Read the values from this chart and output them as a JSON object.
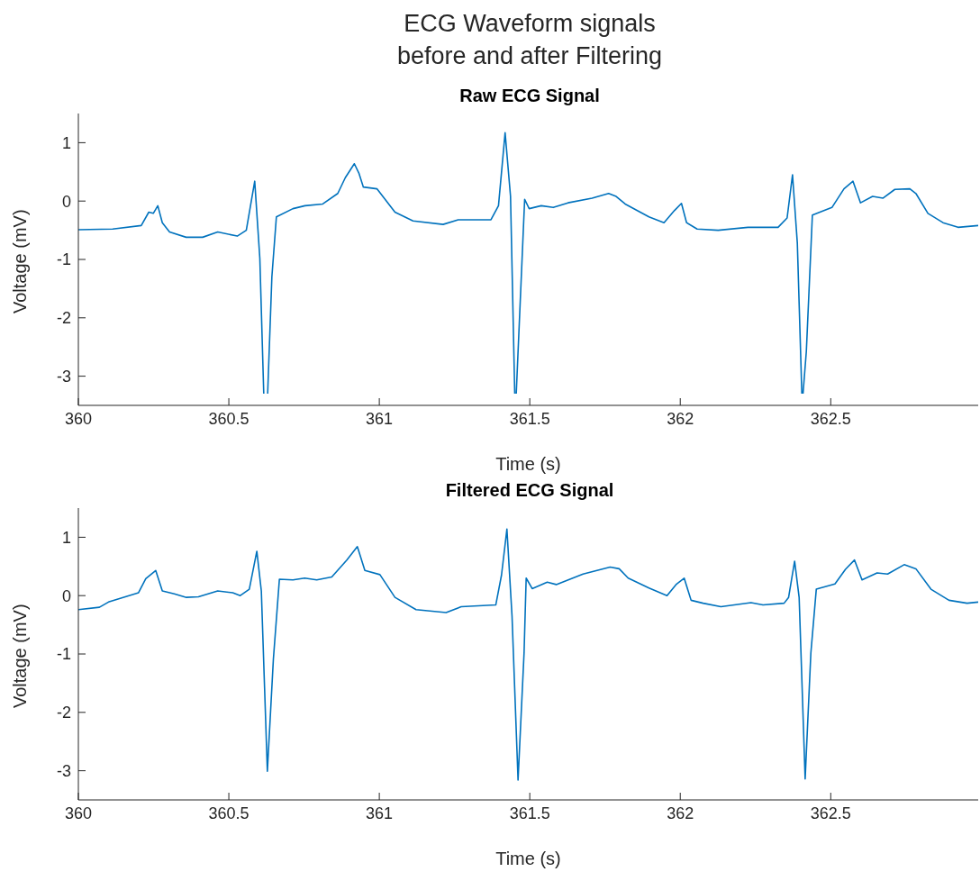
{
  "chart_data": [
    {
      "type": "line",
      "title": "Raw ECG Signal",
      "annotations": [
        "ECG Waveform signals\nbefore and after Filtering"
      ],
      "xlabel": "Time (s)",
      "ylabel": "Voltage (mV)",
      "xlim": [
        360,
        362.99
      ],
      "xticks": [
        360,
        360.5,
        361,
        361.5,
        362,
        362.5
      ],
      "ylim": [
        -3.5,
        1.5
      ],
      "yticks": [
        -3,
        -2,
        -1,
        0,
        1
      ],
      "grid": false,
      "series": [
        {
          "color": "#0072bd",
          "x": [
            360.0,
            360.114,
            360.209,
            360.234,
            360.249,
            360.264,
            360.279,
            360.303,
            360.358,
            360.413,
            360.463,
            360.528,
            360.558,
            360.586,
            360.603,
            360.616,
            360.622,
            360.629,
            360.643,
            360.658,
            360.713,
            360.753,
            360.812,
            360.862,
            360.887,
            360.917,
            360.932,
            360.947,
            360.992,
            361.052,
            361.112,
            361.212,
            361.262,
            361.371,
            361.396,
            361.418,
            361.436,
            361.45,
            361.452,
            361.455,
            361.478,
            361.483,
            361.498,
            361.538,
            361.578,
            361.627,
            361.707,
            361.762,
            361.787,
            361.817,
            361.896,
            361.946,
            361.981,
            362.004,
            362.021,
            362.056,
            362.126,
            362.225,
            362.325,
            362.355,
            362.373,
            362.389,
            362.404,
            362.406,
            362.408,
            362.419,
            362.439,
            362.504,
            362.544,
            362.574,
            362.599,
            362.639,
            362.674,
            362.713,
            362.763,
            362.783,
            362.823,
            362.873,
            362.923,
            362.99
          ],
          "values": [
            -0.49,
            -0.48,
            -0.42,
            -0.19,
            -0.21,
            -0.08,
            -0.37,
            -0.53,
            -0.62,
            -0.62,
            -0.53,
            -0.6,
            -0.5,
            0.34,
            -0.98,
            -3.3,
            null,
            -3.3,
            -1.3,
            -0.27,
            -0.13,
            -0.08,
            -0.05,
            0.13,
            0.4,
            0.64,
            0.48,
            0.24,
            0.21,
            -0.19,
            -0.34,
            -0.4,
            -0.32,
            -0.32,
            -0.08,
            1.17,
            0.08,
            -3.3,
            null,
            -3.3,
            -0.56,
            0.03,
            -0.13,
            -0.08,
            -0.11,
            -0.03,
            0.05,
            0.13,
            0.08,
            -0.05,
            -0.27,
            -0.37,
            -0.16,
            -0.04,
            -0.37,
            -0.48,
            -0.5,
            -0.45,
            -0.45,
            -0.29,
            0.45,
            -0.72,
            -3.3,
            null,
            -3.3,
            -2.57,
            -0.24,
            -0.11,
            0.21,
            0.34,
            -0.03,
            0.08,
            0.05,
            0.2,
            0.21,
            0.13,
            -0.21,
            -0.37,
            -0.45,
            -0.42
          ]
        }
      ]
    },
    {
      "type": "line",
      "title": "Filtered ECG Signal",
      "xlabel": "Time (s)",
      "ylabel": "Voltage (mV)",
      "xlim": [
        360,
        362.99
      ],
      "xticks": [
        360,
        360.5,
        361,
        361.5,
        362,
        362.5
      ],
      "ylim": [
        -3.5,
        1.5
      ],
      "yticks": [
        -3,
        -2,
        -1,
        0,
        1
      ],
      "grid": false,
      "series": [
        {
          "color": "#0072bd",
          "x": [
            360.0,
            360.07,
            360.1,
            360.2,
            360.224,
            360.257,
            360.279,
            360.319,
            360.359,
            360.399,
            360.463,
            360.513,
            360.538,
            360.568,
            360.593,
            360.608,
            360.628,
            360.648,
            360.668,
            360.713,
            360.752,
            360.792,
            360.842,
            360.892,
            360.927,
            360.952,
            361.002,
            361.052,
            361.122,
            361.222,
            361.272,
            361.387,
            361.406,
            361.424,
            361.441,
            361.461,
            361.481,
            361.488,
            361.508,
            361.558,
            361.588,
            361.677,
            361.767,
            361.797,
            361.827,
            361.896,
            361.956,
            361.986,
            362.013,
            362.036,
            362.076,
            362.135,
            362.235,
            362.275,
            362.345,
            362.36,
            362.38,
            362.395,
            362.415,
            362.434,
            362.452,
            362.514,
            362.549,
            362.579,
            362.604,
            362.654,
            362.689,
            362.744,
            362.783,
            362.833,
            362.893,
            362.953,
            362.99
          ],
          "values": [
            -0.24,
            -0.2,
            -0.11,
            0.05,
            0.29,
            0.43,
            0.08,
            0.03,
            -0.03,
            -0.02,
            0.08,
            0.05,
            0.0,
            0.11,
            0.76,
            0.08,
            -3.01,
            -1.09,
            0.28,
            0.27,
            0.3,
            0.27,
            0.32,
            0.61,
            0.84,
            0.43,
            0.36,
            -0.03,
            -0.24,
            -0.29,
            -0.19,
            -0.16,
            0.35,
            1.14,
            -0.35,
            -3.16,
            -0.98,
            0.3,
            0.12,
            0.23,
            0.19,
            0.37,
            0.49,
            0.46,
            0.3,
            0.13,
            0.0,
            0.19,
            0.3,
            -0.08,
            -0.13,
            -0.19,
            -0.12,
            -0.16,
            -0.13,
            -0.03,
            0.59,
            -0.03,
            -3.14,
            -0.98,
            0.11,
            0.2,
            0.45,
            0.61,
            0.27,
            0.39,
            0.37,
            0.53,
            0.46,
            0.11,
            -0.08,
            -0.13,
            -0.11
          ]
        }
      ]
    }
  ]
}
